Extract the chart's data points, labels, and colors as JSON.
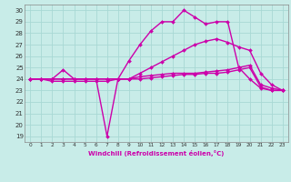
{
  "xlabel": "Windchill (Refroidissement éolien,°C)",
  "bg_color": "#c8ece8",
  "grid_color": "#a8d8d4",
  "line_color": "#cc00aa",
  "line_width": 1.0,
  "marker": "D",
  "marker_size": 2.0,
  "xlim": [
    -0.5,
    23.5
  ],
  "ylim": [
    18.5,
    30.5
  ],
  "xticks": [
    0,
    1,
    2,
    3,
    4,
    5,
    6,
    7,
    8,
    9,
    10,
    11,
    12,
    13,
    14,
    15,
    16,
    17,
    18,
    19,
    20,
    21,
    22,
    23
  ],
  "yticks": [
    19,
    20,
    21,
    22,
    23,
    24,
    25,
    26,
    27,
    28,
    29,
    30
  ],
  "lines": [
    {
      "x": [
        0,
        1,
        2,
        3,
        4,
        5,
        6,
        7,
        8,
        9,
        10,
        11,
        12,
        13,
        14,
        15,
        16,
        17,
        18,
        19,
        20,
        21,
        22,
        23
      ],
      "y": [
        24,
        24,
        24,
        24.8,
        24,
        24,
        24,
        19,
        24,
        25.6,
        27,
        28.2,
        29,
        29,
        30,
        29.4,
        28.8,
        29,
        29,
        25,
        24,
        23.2,
        23,
        23
      ]
    },
    {
      "x": [
        0,
        1,
        2,
        3,
        4,
        5,
        6,
        7,
        8,
        9,
        10,
        11,
        12,
        13,
        14,
        15,
        16,
        17,
        18,
        19,
        20,
        21,
        22,
        23
      ],
      "y": [
        24,
        24,
        23.8,
        23.8,
        23.8,
        23.8,
        23.8,
        23.8,
        24,
        24,
        24.5,
        25,
        25.5,
        26,
        26.5,
        27,
        27.3,
        27.5,
        27.2,
        26.8,
        26.5,
        24.5,
        23.5,
        23
      ]
    },
    {
      "x": [
        0,
        1,
        2,
        3,
        4,
        5,
        6,
        7,
        8,
        9,
        10,
        11,
        12,
        13,
        14,
        15,
        16,
        17,
        18,
        19,
        20,
        21,
        22,
        23
      ],
      "y": [
        24,
        24,
        24,
        24,
        24,
        24,
        24,
        24,
        24,
        24,
        24.2,
        24.3,
        24.4,
        24.5,
        24.5,
        24.5,
        24.6,
        24.7,
        24.8,
        25,
        25.2,
        23.5,
        23.2,
        23
      ]
    },
    {
      "x": [
        0,
        1,
        2,
        3,
        4,
        5,
        6,
        7,
        8,
        9,
        10,
        11,
        12,
        13,
        14,
        15,
        16,
        17,
        18,
        19,
        20,
        21,
        22,
        23
      ],
      "y": [
        24,
        24,
        24,
        24,
        24,
        24,
        24,
        24,
        24,
        24,
        24,
        24.1,
        24.2,
        24.3,
        24.4,
        24.4,
        24.5,
        24.5,
        24.6,
        24.8,
        25,
        23.3,
        23,
        23
      ]
    }
  ]
}
